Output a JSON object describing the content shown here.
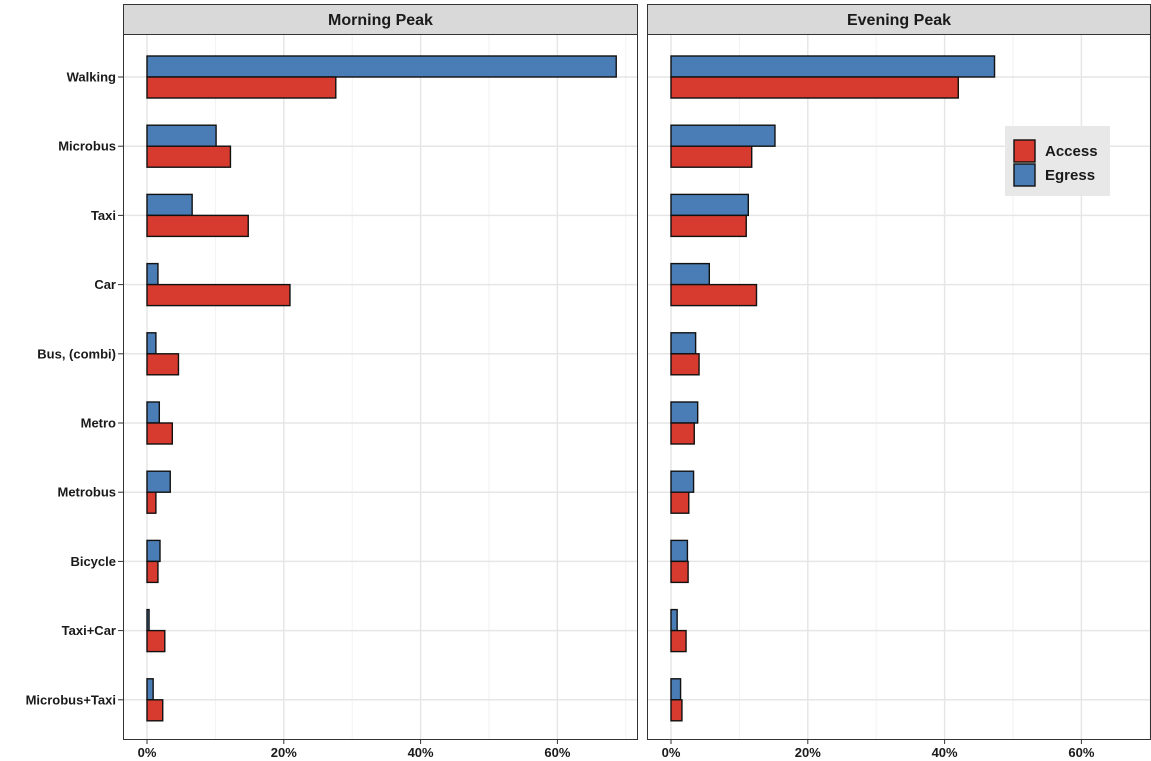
{
  "chart_data": {
    "type": "bar",
    "orientation": "horizontal",
    "facets": [
      "Morning Peak",
      "Evening Peak"
    ],
    "categories": [
      "Walking",
      "Microbus",
      "Taxi",
      "Car",
      "Bus, (combi)",
      "Metro",
      "Metrobus",
      "Bicycle",
      "Taxi+Car",
      "Microbus+Taxi"
    ],
    "x_ticks": [
      "0%",
      "20%",
      "40%",
      "60%"
    ],
    "xlim": [
      0,
      70
    ],
    "grid": true,
    "legend_position": "top-right",
    "series": [
      {
        "name": "Access",
        "color": "#d73a2e",
        "values": {
          "Morning Peak": [
            27.6,
            12.2,
            14.8,
            20.9,
            4.6,
            3.7,
            1.3,
            1.6,
            2.6,
            2.3
          ],
          "Evening Peak": [
            42.0,
            11.8,
            11.0,
            12.5,
            4.1,
            3.4,
            2.6,
            2.5,
            2.2,
            1.6
          ]
        }
      },
      {
        "name": "Egress",
        "color": "#4a7db6",
        "values": {
          "Morning Peak": [
            68.6,
            10.1,
            6.6,
            1.6,
            1.3,
            1.8,
            3.4,
            1.9,
            0.3,
            0.9
          ],
          "Evening Peak": [
            47.3,
            15.2,
            11.3,
            5.6,
            3.6,
            3.9,
            3.3,
            2.4,
            0.9,
            1.4
          ]
        }
      }
    ]
  }
}
